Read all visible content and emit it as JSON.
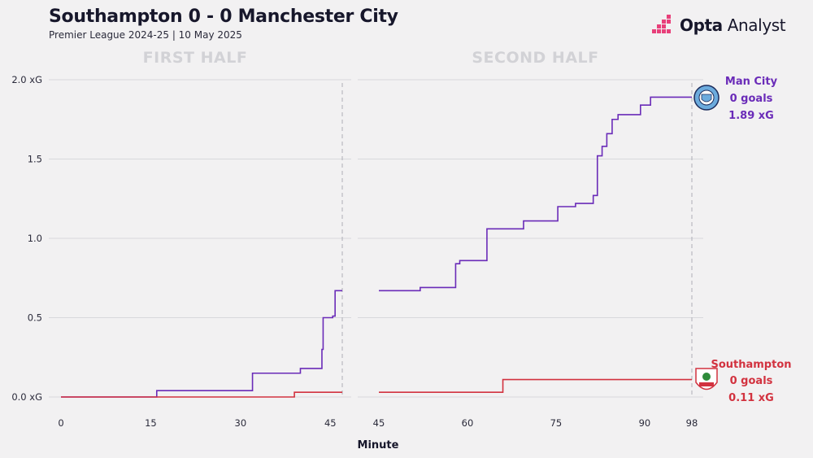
{
  "header": {
    "title": "Southampton 0 - 0 Manchester City",
    "subtitle": "Premier League 2024-25 | 10 May 2025"
  },
  "brand": {
    "name_bold": "Opta",
    "name_regular": "Analyst",
    "icon": "opta-pixel-logo-icon"
  },
  "colors": {
    "man_city": "#6a2bb8",
    "southampton": "#d2323f",
    "grid": "#d8d8dc",
    "half_label": "#d2d2d6"
  },
  "chart_data": {
    "type": "line",
    "step": true,
    "xlabel": "Minute",
    "ylabel": "",
    "ylim": [
      0,
      2.0
    ],
    "y_ticks": [
      "0.0 xG",
      "0.5",
      "1.0",
      "1.5",
      "2.0 xG"
    ],
    "y_tick_values": [
      0,
      0.5,
      1.0,
      1.5,
      2.0
    ],
    "grid": true,
    "panels": [
      {
        "label": "FIRST HALF",
        "xlim": [
          0,
          47
        ],
        "x_ticks": [
          0,
          15,
          30,
          45
        ],
        "end_marker": 47,
        "series": [
          {
            "name": "Man City",
            "color": "#6a2bb8",
            "points": [
              [
                0,
                0
              ],
              [
                16,
                0.04
              ],
              [
                32,
                0.15
              ],
              [
                40,
                0.18
              ],
              [
                43.6,
                0.3
              ],
              [
                43.8,
                0.5
              ],
              [
                45.4,
                0.51
              ],
              [
                45.8,
                0.67
              ],
              [
                47,
                0.67
              ]
            ]
          },
          {
            "name": "Southampton",
            "color": "#d2323f",
            "points": [
              [
                0,
                0
              ],
              [
                39,
                0.03
              ],
              [
                47,
                0.03
              ]
            ]
          }
        ]
      },
      {
        "label": "SECOND HALF",
        "xlim": [
          45,
          98
        ],
        "x_ticks": [
          45,
          60,
          75,
          90,
          98
        ],
        "end_marker": 98,
        "series": [
          {
            "name": "Man City",
            "color": "#6a2bb8",
            "points": [
              [
                45,
                0.67
              ],
              [
                52,
                0.69
              ],
              [
                58,
                0.84
              ],
              [
                58.7,
                0.86
              ],
              [
                63.3,
                1.06
              ],
              [
                69.5,
                1.11
              ],
              [
                75.3,
                1.2
              ],
              [
                78.3,
                1.22
              ],
              [
                81.3,
                1.27
              ],
              [
                82,
                1.52
              ],
              [
                82.8,
                1.58
              ],
              [
                83.6,
                1.66
              ],
              [
                84.5,
                1.75
              ],
              [
                85.5,
                1.78
              ],
              [
                89.3,
                1.84
              ],
              [
                91,
                1.89
              ],
              [
                98,
                1.89
              ]
            ]
          },
          {
            "name": "Southampton",
            "color": "#d2323f",
            "points": [
              [
                45,
                0.03
              ],
              [
                66,
                0.11
              ],
              [
                98,
                0.11
              ]
            ]
          }
        ]
      }
    ],
    "team_labels": [
      {
        "team": "Man City",
        "goals": "0 goals",
        "xg": "1.89 xG",
        "crest": "man-city-crest-icon"
      },
      {
        "team": "Southampton",
        "goals": "0 goals",
        "xg": "0.11 xG",
        "crest": "southampton-crest-icon"
      }
    ]
  }
}
